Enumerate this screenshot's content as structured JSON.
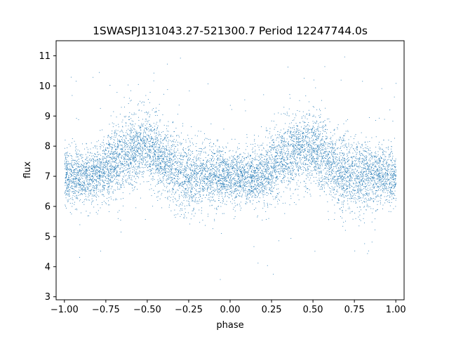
{
  "chart_data": {
    "type": "scatter",
    "title": "1SWASPJ131043.27-521300.7 Period 12247744.0s",
    "xlabel": "phase",
    "ylabel": "flux",
    "xlim": [
      -1.05,
      1.05
    ],
    "ylim": [
      2.9,
      11.5
    ],
    "x_ticks": [
      -1.0,
      -0.75,
      -0.5,
      -0.25,
      0.0,
      0.25,
      0.5,
      0.75,
      1.0
    ],
    "x_tick_labels": [
      "−1.00",
      "−0.75",
      "−0.50",
      "−0.25",
      "0.00",
      "0.25",
      "0.50",
      "0.75",
      "1.00"
    ],
    "y_ticks": [
      3,
      4,
      5,
      6,
      7,
      8,
      9,
      10,
      11
    ],
    "y_tick_labels": [
      "3",
      "4",
      "5",
      "6",
      "7",
      "8",
      "9",
      "10",
      "11"
    ],
    "grid": false,
    "legend": "none",
    "marker_color": "#1f77b4",
    "phase_range": [
      -1.0,
      1.0
    ],
    "baseline_flux": 7.0,
    "profile": [
      {
        "phase": -1.0,
        "mean": 7.0,
        "spread": 0.45
      },
      {
        "phase": -0.9,
        "mean": 7.0,
        "spread": 0.45
      },
      {
        "phase": -0.8,
        "mean": 7.1,
        "spread": 0.5
      },
      {
        "phase": -0.7,
        "mean": 7.5,
        "spread": 0.6
      },
      {
        "phase": -0.6,
        "mean": 7.9,
        "spread": 0.6
      },
      {
        "phase": -0.5,
        "mean": 8.0,
        "spread": 0.6
      },
      {
        "phase": -0.4,
        "mean": 7.5,
        "spread": 0.55
      },
      {
        "phase": -0.3,
        "mean": 7.1,
        "spread": 0.65
      },
      {
        "phase": -0.2,
        "mean": 7.0,
        "spread": 0.55
      },
      {
        "phase": -0.1,
        "mean": 7.1,
        "spread": 0.5
      },
      {
        "phase": 0.0,
        "mean": 7.0,
        "spread": 0.45
      },
      {
        "phase": 0.1,
        "mean": 7.0,
        "spread": 0.45
      },
      {
        "phase": 0.2,
        "mean": 7.1,
        "spread": 0.5
      },
      {
        "phase": 0.3,
        "mean": 7.5,
        "spread": 0.6
      },
      {
        "phase": 0.4,
        "mean": 7.9,
        "spread": 0.6
      },
      {
        "phase": 0.5,
        "mean": 8.0,
        "spread": 0.6
      },
      {
        "phase": 0.6,
        "mean": 7.5,
        "spread": 0.55
      },
      {
        "phase": 0.7,
        "mean": 7.1,
        "spread": 0.65
      },
      {
        "phase": 0.8,
        "mean": 7.0,
        "spread": 0.55
      },
      {
        "phase": 0.9,
        "mean": 7.1,
        "spread": 0.5
      },
      {
        "phase": 1.0,
        "mean": 7.0,
        "spread": 0.45
      }
    ],
    "flux_min": 3.3,
    "flux_max": 11.1
  }
}
